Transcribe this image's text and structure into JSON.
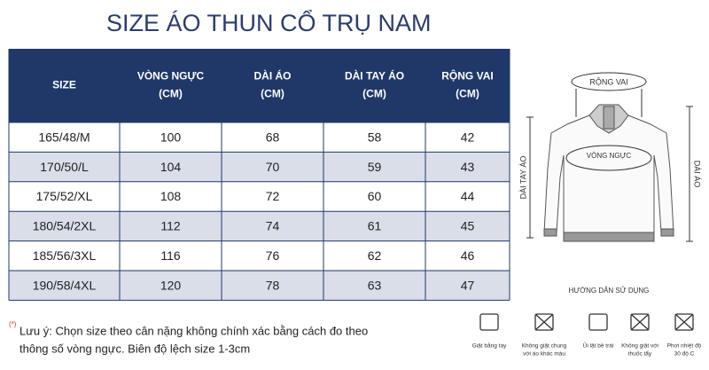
{
  "title": "SIZE ÁO THUN CỔ TRỤ NAM",
  "table": {
    "headers": [
      [
        "SIZE"
      ],
      [
        "VÒNG NGỰC",
        "(CM)"
      ],
      [
        "DÀI ÁO",
        "(CM)"
      ],
      [
        "DÀI TAY ÁO",
        "(CM)"
      ],
      [
        "RỘNG VAI",
        "(CM)"
      ]
    ],
    "rows": [
      [
        "165/48/M",
        100,
        68,
        58,
        42
      ],
      [
        "170/50/L",
        104,
        70,
        59,
        43
      ],
      [
        "175/52/XL",
        108,
        72,
        60,
        44
      ],
      [
        "180/54/2XL",
        112,
        74,
        61,
        45
      ],
      [
        "185/56/3XL",
        116,
        76,
        62,
        46
      ],
      [
        "190/58/4XL",
        120,
        78,
        63,
        47
      ]
    ]
  },
  "diagram": {
    "shoulder": "RỘNG VAI",
    "chest": "VÒNG NGỰC",
    "sleeve": "DÀI TAY ÁO",
    "length": "DÀI ÁO",
    "guide": "HƯỚNG DẪN SỬ DỤNG"
  },
  "note": {
    "mark": "(*)",
    "lines": [
      "Lưu ý: Chọn size theo cân nặng không chính xác bằng cách đo theo",
      "thông số vòng ngực. Biên độ lệch size 1-3cm"
    ]
  },
  "care": [
    [
      "Giặt bằng tay"
    ],
    [
      "Không giặt chung",
      "với áo khác màu"
    ],
    [
      "Ủi lật bề trái"
    ],
    [
      "Không giặt với",
      "thuốc tẩy"
    ],
    [
      "Phơi nhiệt độ",
      "30 độ C"
    ]
  ]
}
